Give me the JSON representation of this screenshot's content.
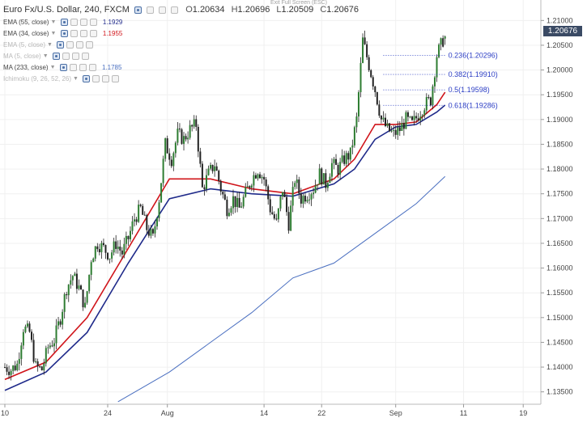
{
  "header": {
    "symbol_title": "Euro Fx/U.S. Dollar, 240, FXCM",
    "open_label": "O",
    "open": "1.20634",
    "high_label": "H",
    "high": "1.20696",
    "low_label": "L",
    "low": "1.20509",
    "close_label": "C",
    "close": "1.20676"
  },
  "exit_fullscreen": "Exit Full Screen (ESC)",
  "indicators": [
    {
      "name": "EMA (55, close)",
      "value": "1.1929",
      "color": "#1f2a8a",
      "visible": true
    },
    {
      "name": "EMA (34, close)",
      "value": "1.1955",
      "color": "#d0141a",
      "visible": true
    },
    {
      "name": "EMA (5, close)",
      "value": "",
      "color": "#b8b8b8",
      "visible": false
    },
    {
      "name": "MA (5, close)",
      "value": "",
      "color": "#b8b8b8",
      "visible": false
    },
    {
      "name": "MA (233, close)",
      "value": "1.1785",
      "color": "#4a6fc0",
      "visible": true
    },
    {
      "name": "Ichimoku (9, 26, 52, 26)",
      "value": "",
      "color": "#b8b8b8",
      "visible": false
    }
  ],
  "last_price_tag": "1.20676",
  "colors": {
    "up": "#2e7d32",
    "down": "#222222",
    "ema34": "#d0141a",
    "ema55": "#1f2a8a",
    "ma233": "#4a6fc0",
    "fib": "#2b3dc4"
  },
  "chart_data": {
    "type": "candlestick",
    "symbol": "EUR/USD",
    "interval": "240",
    "ylim": [
      1.1325,
      1.2125
    ],
    "y_ticks": [
      1.135,
      1.14,
      1.145,
      1.15,
      1.155,
      1.16,
      1.165,
      1.17,
      1.175,
      1.18,
      1.185,
      1.19,
      1.195,
      1.2,
      1.205,
      1.21
    ],
    "y_tick_labels": [
      "1.13500",
      "1.14000",
      "1.14500",
      "1.15000",
      "1.15500",
      "1.16000",
      "1.16500",
      "1.17000",
      "1.17500",
      "1.18000",
      "1.18500",
      "1.19000",
      "1.19500",
      "1.20000",
      "1.20500",
      "1.21000"
    ],
    "x_ticks": [
      {
        "label": "10",
        "index": 0
      },
      {
        "label": "24",
        "index": 50
      },
      {
        "label": "Aug",
        "index": 79
      },
      {
        "label": "14",
        "index": 126
      },
      {
        "label": "22",
        "index": 154
      },
      {
        "label": "Sep",
        "index": 190
      },
      {
        "label": "11",
        "index": 223
      },
      {
        "label": "19",
        "index": 252
      }
    ],
    "x_count": 260,
    "ohlc_points": [
      {
        "i": 0,
        "c": 1.14
      },
      {
        "i": 3,
        "c": 1.1395
      },
      {
        "i": 6,
        "c": 1.1405
      },
      {
        "i": 9,
        "c": 1.148
      },
      {
        "i": 12,
        "c": 1.147
      },
      {
        "i": 15,
        "c": 1.14
      },
      {
        "i": 18,
        "c": 1.1395
      },
      {
        "i": 21,
        "c": 1.144
      },
      {
        "i": 24,
        "c": 1.1455
      },
      {
        "i": 27,
        "c": 1.15
      },
      {
        "i": 30,
        "c": 1.156
      },
      {
        "i": 33,
        "c": 1.1585
      },
      {
        "i": 36,
        "c": 1.156
      },
      {
        "i": 39,
        "c": 1.152
      },
      {
        "i": 42,
        "c": 1.162
      },
      {
        "i": 45,
        "c": 1.165
      },
      {
        "i": 48,
        "c": 1.164
      },
      {
        "i": 51,
        "c": 1.1625
      },
      {
        "i": 54,
        "c": 1.165
      },
      {
        "i": 57,
        "c": 1.163
      },
      {
        "i": 60,
        "c": 1.166
      },
      {
        "i": 63,
        "c": 1.17
      },
      {
        "i": 66,
        "c": 1.172
      },
      {
        "i": 69,
        "c": 1.168
      },
      {
        "i": 72,
        "c": 1.166
      },
      {
        "i": 75,
        "c": 1.174
      },
      {
        "i": 78,
        "c": 1.185
      },
      {
        "i": 81,
        "c": 1.182
      },
      {
        "i": 84,
        "c": 1.187
      },
      {
        "i": 87,
        "c": 1.186
      },
      {
        "i": 90,
        "c": 1.188
      },
      {
        "i": 93,
        "c": 1.189
      },
      {
        "i": 96,
        "c": 1.176
      },
      {
        "i": 99,
        "c": 1.179
      },
      {
        "i": 102,
        "c": 1.181
      },
      {
        "i": 105,
        "c": 1.176
      },
      {
        "i": 108,
        "c": 1.172
      },
      {
        "i": 111,
        "c": 1.174
      },
      {
        "i": 114,
        "c": 1.172
      },
      {
        "i": 117,
        "c": 1.175
      },
      {
        "i": 120,
        "c": 1.178
      },
      {
        "i": 123,
        "c": 1.18
      },
      {
        "i": 126,
        "c": 1.178
      },
      {
        "i": 129,
        "c": 1.172
      },
      {
        "i": 132,
        "c": 1.169
      },
      {
        "i": 135,
        "c": 1.176
      },
      {
        "i": 138,
        "c": 1.169
      },
      {
        "i": 141,
        "c": 1.178
      },
      {
        "i": 144,
        "c": 1.174
      },
      {
        "i": 147,
        "c": 1.175
      },
      {
        "i": 150,
        "c": 1.176
      },
      {
        "i": 153,
        "c": 1.179
      },
      {
        "i": 156,
        "c": 1.177
      },
      {
        "i": 159,
        "c": 1.181
      },
      {
        "i": 162,
        "c": 1.18
      },
      {
        "i": 165,
        "c": 1.182
      },
      {
        "i": 168,
        "c": 1.183
      },
      {
        "i": 171,
        "c": 1.19
      },
      {
        "i": 174,
        "c": 1.206
      },
      {
        "i": 177,
        "c": 1.201
      },
      {
        "i": 180,
        "c": 1.196
      },
      {
        "i": 183,
        "c": 1.19
      },
      {
        "i": 186,
        "c": 1.188
      },
      {
        "i": 189,
        "c": 1.187
      },
      {
        "i": 192,
        "c": 1.188
      },
      {
        "i": 195,
        "c": 1.19
      },
      {
        "i": 198,
        "c": 1.189
      },
      {
        "i": 201,
        "c": 1.191
      },
      {
        "i": 204,
        "c": 1.193
      },
      {
        "i": 207,
        "c": 1.194
      },
      {
        "i": 210,
        "c": 1.203
      },
      {
        "i": 213,
        "c": 1.206
      },
      {
        "i": 214,
        "c": 1.2068
      }
    ],
    "series": [
      {
        "name": "EMA (55, close)",
        "color": "#1f2a8a",
        "points": [
          [
            0,
            1.1353
          ],
          [
            20,
            1.139
          ],
          [
            40,
            1.147
          ],
          [
            60,
            1.161
          ],
          [
            80,
            1.174
          ],
          [
            100,
            1.176
          ],
          [
            120,
            1.175
          ],
          [
            140,
            1.1745
          ],
          [
            160,
            1.177
          ],
          [
            170,
            1.18
          ],
          [
            180,
            1.186
          ],
          [
            190,
            1.1885
          ],
          [
            200,
            1.189
          ],
          [
            210,
            1.1915
          ],
          [
            214,
            1.1929
          ]
        ]
      },
      {
        "name": "EMA (34, close)",
        "color": "#d0141a",
        "points": [
          [
            0,
            1.1375
          ],
          [
            20,
            1.141
          ],
          [
            40,
            1.15
          ],
          [
            60,
            1.164
          ],
          [
            80,
            1.178
          ],
          [
            100,
            1.178
          ],
          [
            120,
            1.176
          ],
          [
            140,
            1.175
          ],
          [
            160,
            1.178
          ],
          [
            170,
            1.182
          ],
          [
            180,
            1.189
          ],
          [
            190,
            1.189
          ],
          [
            200,
            1.1895
          ],
          [
            210,
            1.193
          ],
          [
            214,
            1.1955
          ]
        ]
      },
      {
        "name": "MA (233, close)",
        "color": "#4a6fc0",
        "points": [
          [
            55,
            1.133
          ],
          [
            80,
            1.139
          ],
          [
            100,
            1.145
          ],
          [
            120,
            1.151
          ],
          [
            140,
            1.158
          ],
          [
            160,
            1.161
          ],
          [
            180,
            1.167
          ],
          [
            200,
            1.173
          ],
          [
            214,
            1.1785
          ]
        ]
      }
    ],
    "fibonacci": [
      {
        "label": "0.236(1.20296)",
        "value": 1.20296
      },
      {
        "label": "0.382(1.19910)",
        "value": 1.1991
      },
      {
        "label": "0.5(1.19598)",
        "value": 1.19598
      },
      {
        "label": "0.618(1.19286)",
        "value": 1.19286
      }
    ],
    "fib_range": {
      "start_index": 184,
      "end_index": 214
    },
    "grid": true
  }
}
